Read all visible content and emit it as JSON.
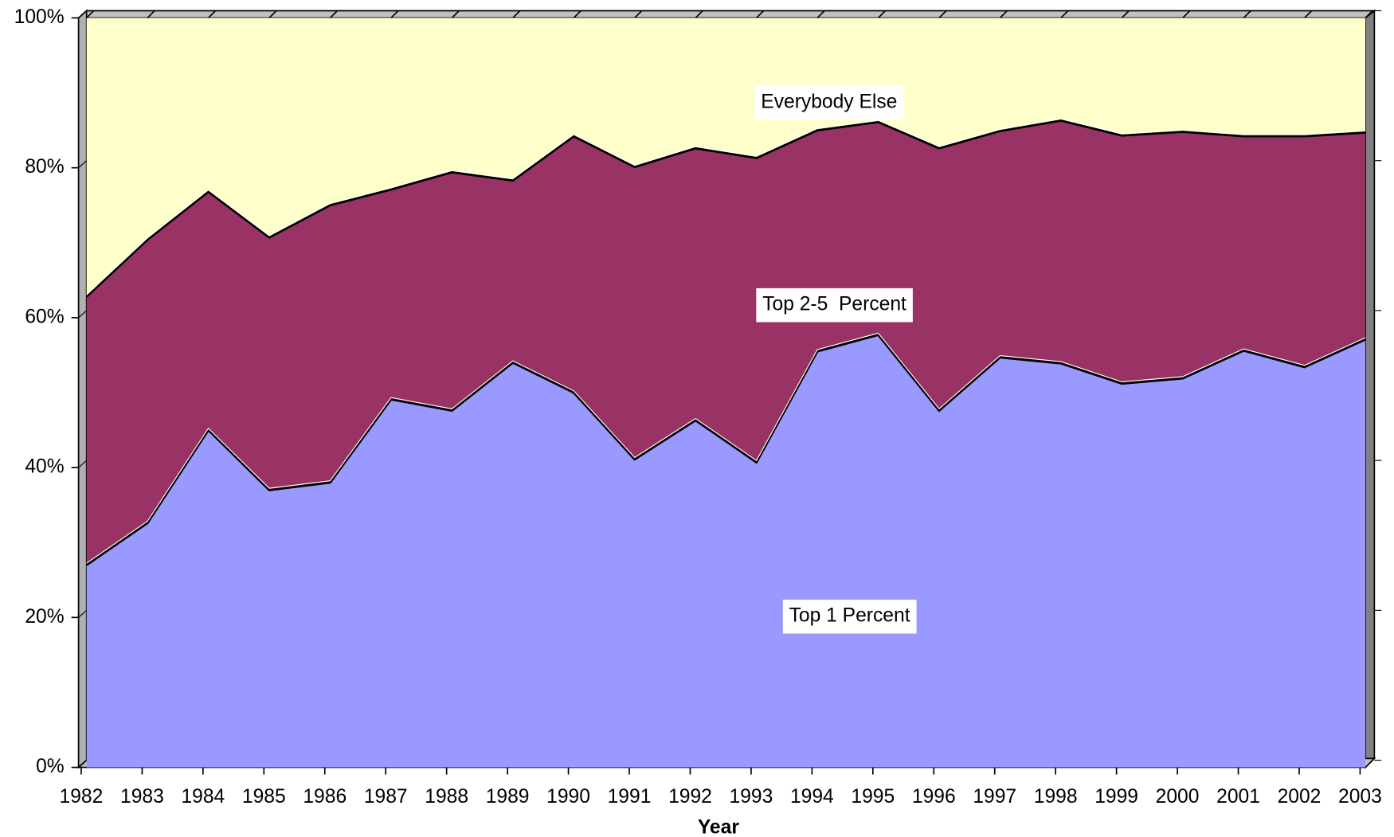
{
  "chart_data": {
    "type": "stacked_area",
    "x_label": "Year",
    "categories": [
      "1982",
      "1983",
      "1984",
      "1985",
      "1986",
      "1987",
      "1988",
      "1989",
      "1990",
      "1991",
      "1992",
      "1993",
      "1994",
      "1995",
      "1996",
      "1997",
      "1998",
      "1999",
      "2000",
      "2001",
      "2002",
      "2003"
    ],
    "series": [
      {
        "name": "Top 1 Percent",
        "color": "#9999ff",
        "values": [
          27.0,
          32.6,
          45.0,
          37.0,
          38.0,
          49.1,
          47.6,
          54.0,
          50.0,
          41.1,
          46.3,
          40.7,
          55.5,
          57.7,
          47.6,
          54.7,
          53.9,
          51.2,
          51.9,
          55.6,
          53.4,
          57.1
        ]
      },
      {
        "name": "Top 2-5  Percent",
        "color": "#993366",
        "values": [
          35.8,
          37.8,
          31.8,
          33.7,
          37.0,
          28.0,
          31.8,
          24.3,
          34.2,
          39.0,
          36.3,
          40.6,
          29.5,
          28.4,
          35.0,
          30.2,
          32.4,
          33.1,
          32.9,
          28.6,
          30.8,
          27.6
        ]
      },
      {
        "name": "Everybody Else",
        "color": "#ffffcc",
        "values": [
          37.2,
          29.6,
          23.2,
          29.3,
          25.0,
          22.9,
          20.6,
          21.7,
          15.8,
          19.9,
          17.4,
          18.7,
          15.0,
          13.9,
          17.4,
          15.1,
          13.7,
          15.7,
          15.2,
          15.8,
          15.8,
          15.3
        ]
      }
    ],
    "ylim": [
      0,
      100
    ],
    "yticks": [
      {
        "value": 0,
        "label": "0%"
      },
      {
        "value": 20,
        "label": "20%"
      },
      {
        "value": 40,
        "label": "40%"
      },
      {
        "value": 60,
        "label": "60%"
      },
      {
        "value": 80,
        "label": "80%"
      },
      {
        "value": 100,
        "label": "100%"
      }
    ]
  }
}
